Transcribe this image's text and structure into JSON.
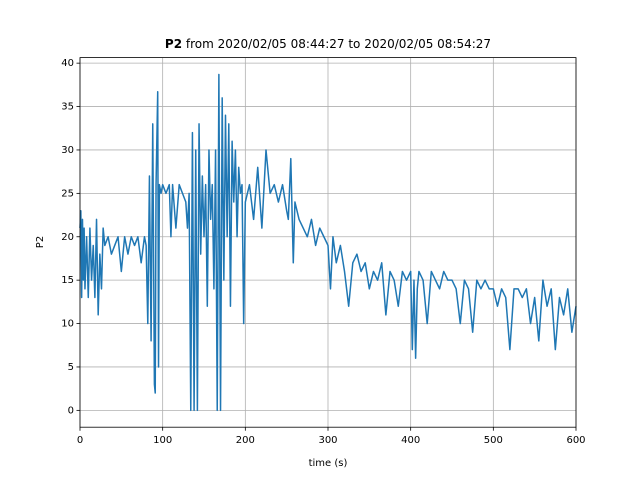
{
  "chart_data": {
    "type": "line",
    "title_parts": [
      "P2",
      "from 2020/02/05 08:44:27 to 2020/02/05 08:54:27"
    ],
    "xlabel": "time (s)",
    "ylabel": "P2",
    "x": [
      0,
      1,
      2,
      3,
      4,
      5,
      6,
      8,
      10,
      12,
      14,
      16,
      18,
      20,
      22,
      24,
      26,
      28,
      30,
      34,
      38,
      42,
      46,
      50,
      54,
      56,
      58,
      62,
      66,
      70,
      74,
      78,
      80,
      82,
      84,
      86,
      88,
      90,
      91,
      92,
      94,
      95,
      96,
      98,
      100,
      104,
      108,
      110,
      112,
      116,
      120,
      124,
      128,
      130,
      132,
      134,
      136,
      138,
      140,
      142,
      144,
      146,
      148,
      150,
      152,
      154,
      156,
      158,
      160,
      162,
      164,
      166,
      168,
      170,
      172,
      174,
      176,
      178,
      180,
      182,
      184,
      186,
      188,
      190,
      192,
      194,
      196,
      198,
      200,
      205,
      210,
      215,
      220,
      225,
      230,
      235,
      240,
      245,
      250,
      252,
      255,
      258,
      260,
      265,
      270,
      275,
      280,
      285,
      290,
      295,
      300,
      303,
      306,
      310,
      315,
      320,
      325,
      330,
      335,
      340,
      345,
      350,
      355,
      360,
      365,
      370,
      375,
      380,
      385,
      390,
      395,
      400,
      402,
      404,
      406,
      408,
      410,
      415,
      420,
      425,
      430,
      435,
      440,
      445,
      450,
      455,
      460,
      465,
      470,
      475,
      480,
      485,
      490,
      495,
      500,
      505,
      510,
      515,
      520,
      525,
      530,
      535,
      540,
      545,
      550,
      555,
      560,
      565,
      570,
      575,
      580,
      585,
      590,
      595,
      600
    ],
    "series": [
      {
        "name": "P2",
        "color": "#1f77b4",
        "values": [
          21,
          23,
          13,
          22,
          15,
          21,
          14,
          20,
          13,
          21,
          15,
          19,
          13,
          22,
          11,
          18,
          14,
          21,
          19,
          20,
          18,
          19,
          20,
          16,
          20,
          19,
          18,
          20,
          19,
          20,
          17,
          20,
          19,
          10,
          27,
          8,
          33,
          3,
          2,
          26,
          36.7,
          5,
          26,
          25,
          26,
          25,
          26,
          20,
          26,
          21,
          26,
          25,
          24,
          21,
          25,
          0,
          32,
          0,
          30,
          0,
          33,
          18,
          27,
          20,
          26,
          12,
          30,
          22,
          26,
          14,
          30,
          0,
          38.7,
          0,
          36,
          15,
          34,
          20,
          33,
          12,
          31,
          24,
          30,
          20,
          28,
          25,
          26,
          10,
          24,
          26,
          22,
          28,
          21,
          30,
          25,
          26,
          24,
          26,
          23,
          22,
          29,
          17,
          24,
          22,
          21,
          20,
          22,
          19,
          21,
          20,
          19,
          14,
          20,
          17,
          19,
          16,
          12,
          17,
          18,
          16,
          17,
          14,
          16,
          15,
          17,
          11,
          16,
          15,
          12,
          16,
          15,
          16,
          7,
          15,
          6,
          14,
          16,
          15,
          10,
          16,
          15,
          14,
          16,
          15,
          15,
          14,
          10,
          15,
          14,
          9,
          15,
          14,
          15,
          14,
          14,
          12,
          14,
          13,
          7,
          14,
          14,
          13,
          14,
          10,
          13,
          8,
          15,
          12,
          14,
          7,
          13,
          11,
          14,
          9,
          12
        ]
      }
    ],
    "xlim": [
      0,
      600
    ],
    "xticks": [
      0,
      100,
      200,
      300,
      400,
      500,
      600
    ],
    "ylim": [
      -1.94,
      40.64
    ],
    "yticks": [
      0,
      5,
      10,
      15,
      20,
      25,
      30,
      35,
      40
    ],
    "grid": true
  }
}
